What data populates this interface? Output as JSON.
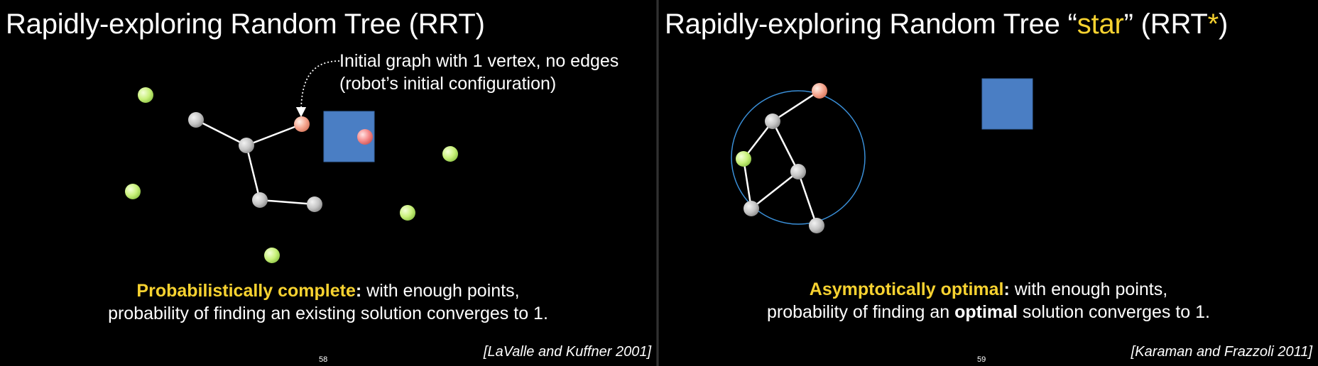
{
  "left": {
    "title": "Rapidly-exploring Random Tree (RRT)",
    "annotation_line1": "Initial graph with 1 vertex, no edges",
    "annotation_line2": "(robot’s initial configuration)",
    "caption_lead": "Probabilistically complete",
    "caption_colon": ":",
    "caption_rest1": " with enough points,",
    "caption_line2": "probability of finding an existing solution converges to 1.",
    "slide_number": "58",
    "citation": "[LaValle and Kuffner 2001]"
  },
  "right": {
    "title_part1": "Rapidly-exploring Random Tree “",
    "title_star_word": "star",
    "title_part2": "” (RRT",
    "title_asterisk": "*",
    "title_part3": ")",
    "caption_lead": "Asymptotically optimal",
    "caption_colon": ":",
    "caption_rest1": " with enough points,",
    "caption_line2_pre": "probability of finding an ",
    "caption_line2_bold": "optimal",
    "caption_line2_post": " solution converges to 1.",
    "slide_number": "59",
    "citation": "[Karaman and Frazzoli 2011]"
  },
  "colors": {
    "background": "#000000",
    "accent_yellow": "#f7d230",
    "tree_node": "#c8c8c8",
    "start_node": "#f5a58e",
    "goal_node": "#f58888",
    "sample_node": "#c8f07a",
    "obstacle": "#4a7ec4",
    "radius_circle": "#3a8fd8"
  }
}
